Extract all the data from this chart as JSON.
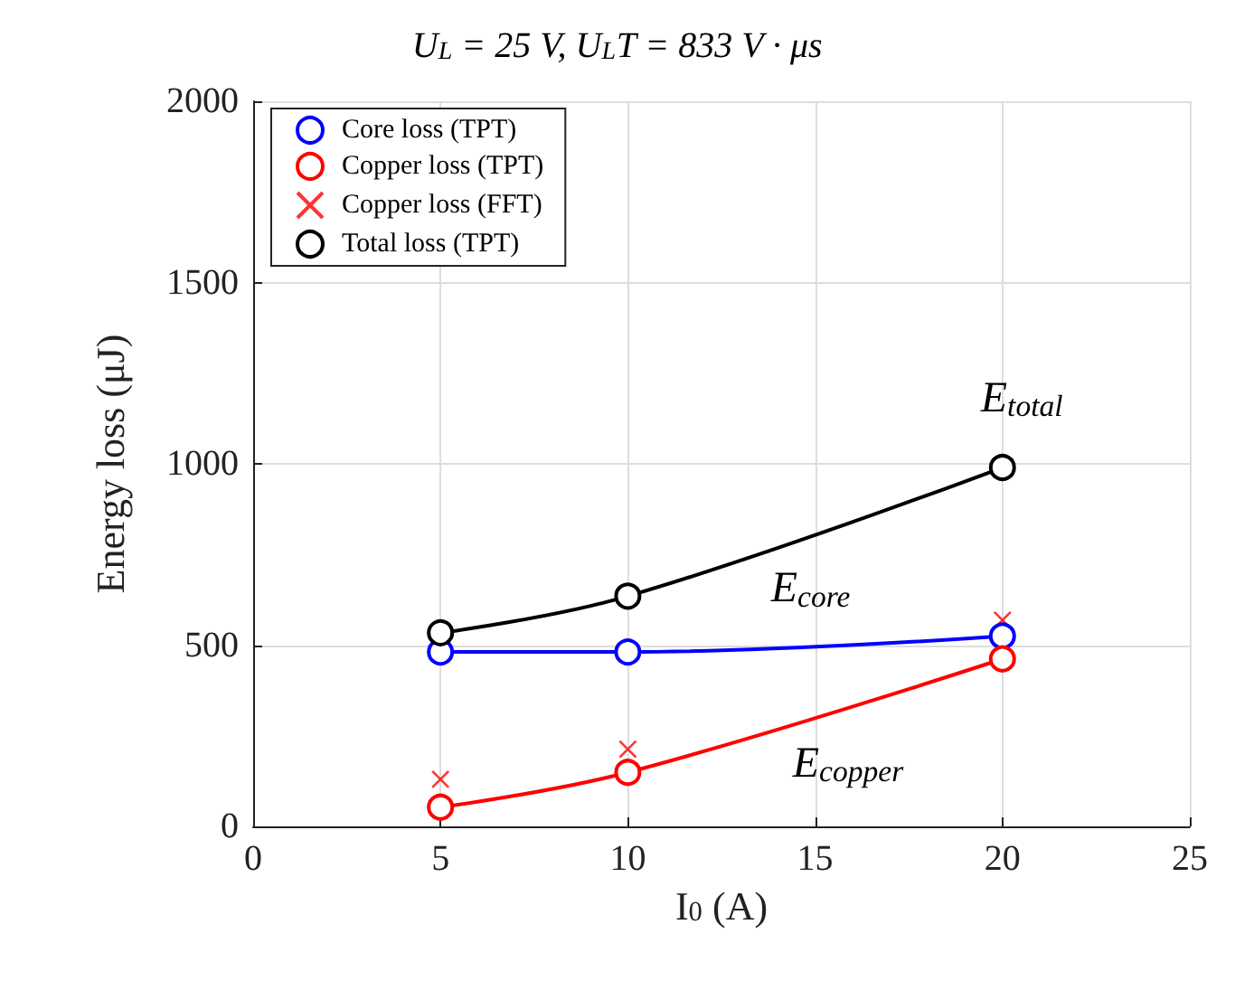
{
  "chart_data": {
    "type": "line",
    "title": "U$_{L}$ = 25 V, U$_{L}$T = 833 V · μs",
    "xlabel": "I$_{0}$ (A)",
    "ylabel": "Energy loss (μJ)",
    "x": [
      5,
      10,
      20
    ],
    "series": [
      {
        "name": "Core loss (TPT)",
        "color": "#0000ff",
        "values": [
          481,
          481,
          525
        ]
      },
      {
        "name": "Copper loss (TPT)",
        "color": "#ff0000",
        "values": [
          53,
          149,
          462
        ]
      },
      {
        "name": "Copper loss (FFT)",
        "type": "scatter",
        "marker": "cross",
        "color": "#ff0000",
        "values": [
          130,
          213,
          569
        ]
      },
      {
        "name": "Total loss (TPT)",
        "color": "#000000",
        "values": [
          534,
          635,
          990
        ]
      }
    ],
    "annotations": [
      "E$_{core}$",
      "E$_{copper}$",
      "E$_{total}$"
    ],
    "marker": "circle",
    "line_style": "solid",
    "xlim": [
      0,
      25
    ],
    "xticks": [
      0,
      5,
      10,
      15,
      20,
      25
    ],
    "ylim": [
      0,
      2000
    ],
    "yticks": [
      0,
      500,
      1000,
      1500,
      2000
    ],
    "grid": true,
    "legend": "top left"
  }
}
